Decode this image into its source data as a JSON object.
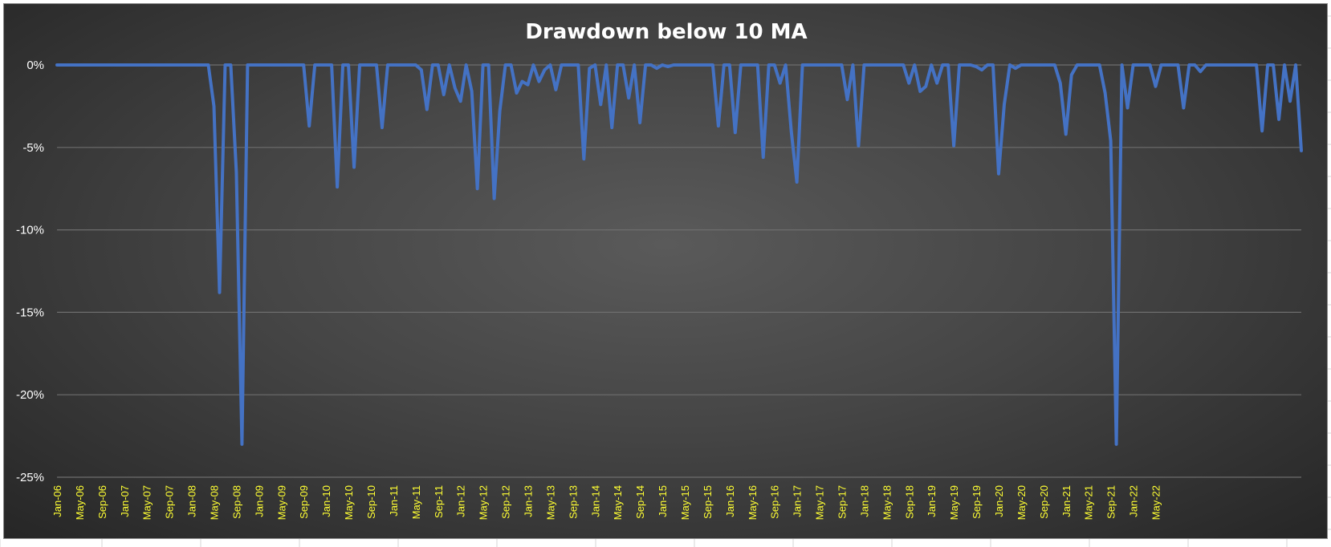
{
  "chart_data": {
    "type": "line",
    "title": "Drawdown below 10 MA",
    "xlabel": "",
    "ylabel": "",
    "ylim": [
      -25,
      0
    ],
    "y_ticks": [
      "0%",
      "-5%",
      "-10%",
      "-15%",
      "-20%",
      "-25%"
    ],
    "y_tick_values": [
      0,
      -5,
      -10,
      -15,
      -20,
      -25
    ],
    "x_tick_labels": [
      "Jan-06",
      "May-06",
      "Sep-06",
      "Jan-07",
      "May-07",
      "Sep-07",
      "Jan-08",
      "May-08",
      "Sep-08",
      "Jan-09",
      "May-09",
      "Sep-09",
      "Jan-10",
      "May-10",
      "Sep-10",
      "Jan-11",
      "May-11",
      "Sep-11",
      "Jan-12",
      "May-12",
      "Sep-12",
      "Jan-13",
      "May-13",
      "Sep-13",
      "Jan-14",
      "May-14",
      "Sep-14",
      "Jan-15",
      "May-15",
      "Sep-15",
      "Jan-16",
      "May-16",
      "Sep-16",
      "Jan-17",
      "May-17",
      "Sep-17",
      "Jan-18",
      "May-18",
      "Sep-18",
      "Jan-19",
      "May-19",
      "Sep-19",
      "Jan-20",
      "May-20",
      "Sep-20",
      "Jan-21",
      "May-21",
      "Sep-21",
      "Jan-22",
      "May-22"
    ],
    "grid": true,
    "legend": "none",
    "series_color": "#4472C4",
    "series": [
      {
        "values": [
          0,
          0,
          0,
          0,
          0,
          0,
          0,
          0,
          0,
          0,
          0,
          0,
          0,
          0,
          0,
          0,
          0,
          0,
          0,
          0,
          0,
          0,
          0,
          0,
          0,
          0,
          0,
          0,
          -2.5,
          -13.8,
          0,
          0,
          -6.5,
          -23,
          0,
          0,
          0,
          0,
          0,
          0,
          0,
          0,
          0,
          0,
          0,
          -3.7,
          0,
          0,
          0,
          0,
          -7.4,
          0,
          0,
          -6.2,
          0,
          0,
          0,
          0,
          -3.8,
          0,
          0,
          0,
          0,
          0,
          0,
          -0.3,
          -2.7,
          0,
          0,
          -1.8,
          0,
          -1.4,
          -2.2,
          0,
          -1.6,
          -7.5,
          0,
          0,
          -8.1,
          -2.8,
          0,
          0,
          -1.7,
          -1,
          -1.2,
          0,
          -1,
          -0.3,
          0,
          -1.5,
          0,
          0,
          0,
          0,
          -5.7,
          -0.2,
          0,
          -2.4,
          0,
          -3.8,
          0,
          0,
          -2,
          0,
          -3.5,
          0,
          0,
          -0.2,
          0,
          -0.1,
          0,
          0,
          0,
          0,
          0,
          0,
          0,
          0,
          -3.7,
          0,
          0,
          -4.1,
          0,
          0,
          0,
          0,
          -5.6,
          0,
          0,
          -1.1,
          0,
          -4,
          -7.1,
          0,
          0,
          0,
          0,
          0,
          0,
          0,
          0,
          -2.1,
          0,
          -4.9,
          0,
          0,
          0,
          0,
          0,
          0,
          0,
          0,
          -1.1,
          0,
          -1.6,
          -1.3,
          0,
          -1.1,
          0,
          0,
          -4.9,
          0,
          0,
          0,
          -0.1,
          -0.3,
          0,
          0,
          -6.6,
          -2.4,
          0,
          -0.2,
          0,
          0,
          0,
          0,
          0,
          0,
          0,
          -1.1,
          -4.2,
          -0.6,
          0,
          0,
          0,
          0,
          0,
          -1.7,
          -4.6,
          -23,
          0,
          -2.6,
          0,
          0,
          0,
          0,
          -1.3,
          0,
          0,
          0,
          0,
          -2.6,
          0,
          0,
          -0.4,
          0,
          0,
          0,
          0,
          0,
          0,
          0,
          0,
          0,
          0,
          -4,
          0,
          0,
          -3.3,
          0,
          -2.2,
          0,
          -5.2
        ]
      }
    ]
  }
}
